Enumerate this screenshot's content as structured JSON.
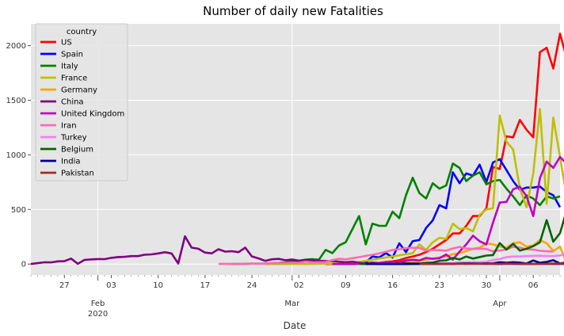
{
  "chart_data": {
    "type": "line",
    "title": "Number of daily new Fatalities",
    "xlabel": "Date",
    "ylabel": "",
    "ylim": [
      -100,
      2200
    ],
    "grid": true,
    "legend_title": "country",
    "legend_placement": "top-left",
    "y_ticks": [
      "0",
      "500",
      "1000",
      "1500",
      "2000"
    ],
    "x_ticks": [
      {
        "date": "2020-01-27",
        "label": "27"
      },
      {
        "date": "2020-02-03",
        "label": "03"
      },
      {
        "date": "2020-02-10",
        "label": "10"
      },
      {
        "date": "2020-02-17",
        "label": "17"
      },
      {
        "date": "2020-02-24",
        "label": "24"
      },
      {
        "date": "2020-03-02",
        "label": "02"
      },
      {
        "date": "2020-03-09",
        "label": "09"
      },
      {
        "date": "2020-03-16",
        "label": "16"
      },
      {
        "date": "2020-03-23",
        "label": "23"
      },
      {
        "date": "2020-03-30",
        "label": "30"
      },
      {
        "date": "2020-04-06",
        "label": "06"
      }
    ],
    "month_labels": [
      {
        "date": "2020-02-01",
        "label": "Feb",
        "sub": "2020"
      },
      {
        "date": "2020-03-01",
        "label": "Mar",
        "sub": ""
      },
      {
        "date": "2020-04-01",
        "label": "Apr",
        "sub": ""
      }
    ],
    "series": [
      {
        "name": "US",
        "color": "#ff0000",
        "start": "2020-03-06",
        "values": [
          0,
          2,
          0,
          1,
          3,
          4,
          5,
          8,
          10,
          20,
          25,
          35,
          55,
          70,
          85,
          110,
          140,
          180,
          220,
          280,
          280,
          350,
          440,
          440,
          510,
          890,
          870,
          1170,
          1160,
          1320,
          1230,
          1160,
          1940,
          1980,
          1790,
          2110,
          1880
        ]
      },
      {
        "name": "Spain",
        "color": "#0000ff",
        "start": "2020-03-10",
        "values": [
          0,
          10,
          15,
          70,
          60,
          100,
          60,
          190,
          110,
          210,
          220,
          330,
          400,
          540,
          510,
          840,
          740,
          830,
          810,
          910,
          750,
          930,
          960,
          860,
          760,
          680,
          700,
          700,
          710,
          660,
          630,
          520
        ]
      },
      {
        "name": "Italy",
        "color": "#008000",
        "start": "2020-02-21",
        "values": [
          1,
          1,
          2,
          4,
          4,
          5,
          8,
          10,
          15,
          25,
          30,
          40,
          45,
          40,
          130,
          100,
          170,
          200,
          320,
          440,
          180,
          370,
          350,
          350,
          480,
          420,
          630,
          790,
          650,
          600,
          740,
          690,
          720,
          920,
          880,
          760,
          810,
          840,
          730,
          760,
          770,
          690,
          620,
          540,
          630,
          600,
          540,
          620,
          600,
          620
        ]
      },
      {
        "name": "France",
        "color": "#bfbf00",
        "start": "2020-02-26",
        "values": [
          1,
          0,
          0,
          0,
          1,
          1,
          1,
          2,
          3,
          4,
          4,
          5,
          6,
          10,
          20,
          30,
          40,
          50,
          60,
          70,
          80,
          90,
          100,
          180,
          130,
          200,
          240,
          230,
          370,
          320,
          330,
          300,
          450,
          500,
          510,
          1360,
          1120,
          1050,
          690,
          520,
          830,
          1420,
          550,
          1340,
          980,
          610
        ]
      },
      {
        "name": "Germany",
        "color": "#ffa500",
        "start": "2020-03-09",
        "values": [
          2,
          2,
          4,
          3,
          4,
          5,
          6,
          8,
          10,
          15,
          20,
          30,
          40,
          50,
          60,
          70,
          90,
          100,
          120,
          140,
          150,
          190,
          180,
          160,
          150,
          190,
          200,
          160,
          170,
          220,
          190,
          120,
          160,
          0
        ]
      },
      {
        "name": "China",
        "color": "#800080",
        "start": "2020-01-22",
        "values": [
          1,
          8,
          16,
          15,
          25,
          26,
          50,
          2,
          38,
          43,
          46,
          45,
          57,
          64,
          66,
          73,
          73,
          86,
          89,
          97,
          108,
          97,
          5,
          254,
          150,
          140,
          105,
          98,
          136,
          114,
          118,
          109,
          150,
          70,
          52,
          29,
          44,
          47,
          35,
          42,
          31,
          38,
          31,
          30,
          28,
          27,
          22,
          17,
          22,
          11,
          7,
          13,
          10,
          14,
          13,
          11,
          8,
          3,
          7,
          6,
          9,
          7,
          4,
          6,
          5,
          3,
          5,
          4,
          3,
          2,
          1,
          2,
          3,
          1,
          1,
          1,
          3,
          2,
          1,
          1,
          1
        ]
      },
      {
        "name": "United Kingdom",
        "color": "#bf00bf",
        "start": "2020-03-07",
        "values": [
          0,
          0,
          1,
          0,
          3,
          2,
          5,
          10,
          14,
          20,
          16,
          33,
          40,
          33,
          56,
          48,
          54,
          87,
          41,
          115,
          180,
          260,
          209,
          180,
          380,
          563,
          569,
          684,
          708,
          621,
          439,
          786,
          938,
          881,
          980,
          917
        ]
      },
      {
        "name": "Iran",
        "color": "#ff69b4",
        "start": "2020-02-19",
        "values": [
          2,
          2,
          1,
          1,
          4,
          4,
          3,
          4,
          8,
          8,
          11,
          12,
          11,
          23,
          17,
          15,
          18,
          36,
          49,
          43,
          54,
          63,
          75,
          85,
          97,
          113,
          129,
          135,
          147,
          149,
          149,
          123,
          129,
          127,
          122,
          143,
          157,
          144,
          139,
          141,
          138,
          117,
          124,
          134,
          158,
          151,
          136,
          133,
          121,
          117,
          114
        ]
      },
      {
        "name": "Turkey",
        "color": "#ee82ee",
        "start": "2020-03-17",
        "values": [
          1,
          1,
          2,
          2,
          3,
          4,
          7,
          7,
          9,
          15,
          16,
          17,
          17,
          20,
          37,
          46,
          63,
          69,
          69,
          73,
          75,
          76,
          73,
          73,
          79,
          96,
          98,
          104,
          98
        ]
      },
      {
        "name": "Belgium",
        "color": "#006400",
        "start": "2020-03-11",
        "values": [
          3,
          0,
          1,
          0,
          0,
          1,
          2,
          4,
          5,
          6,
          11,
          14,
          30,
          34,
          56,
          42,
          69,
          50,
          64,
          78,
          82,
          192,
          132,
          185,
          123,
          140,
          164,
          200,
          403,
          205,
          283,
          496,
          320
        ]
      },
      {
        "name": "India",
        "color": "#00008b",
        "start": "2020-03-12",
        "values": [
          1,
          1,
          0,
          1,
          0,
          0,
          0,
          1,
          1,
          2,
          4,
          1,
          3,
          2,
          5,
          6,
          6,
          4,
          6,
          7,
          17,
          12,
          17,
          13,
          5,
          33,
          12,
          20,
          35,
          5,
          16,
          33,
          38
        ]
      },
      {
        "name": "Pakistan",
        "color": "#a52a2a",
        "start": "2020-03-20",
        "values": [
          1,
          1,
          0,
          1,
          2,
          0,
          3,
          1,
          3,
          2,
          1,
          4,
          0,
          6,
          2,
          2,
          4,
          2,
          2,
          2,
          5,
          5,
          4,
          6,
          5,
          6
        ]
      }
    ]
  }
}
